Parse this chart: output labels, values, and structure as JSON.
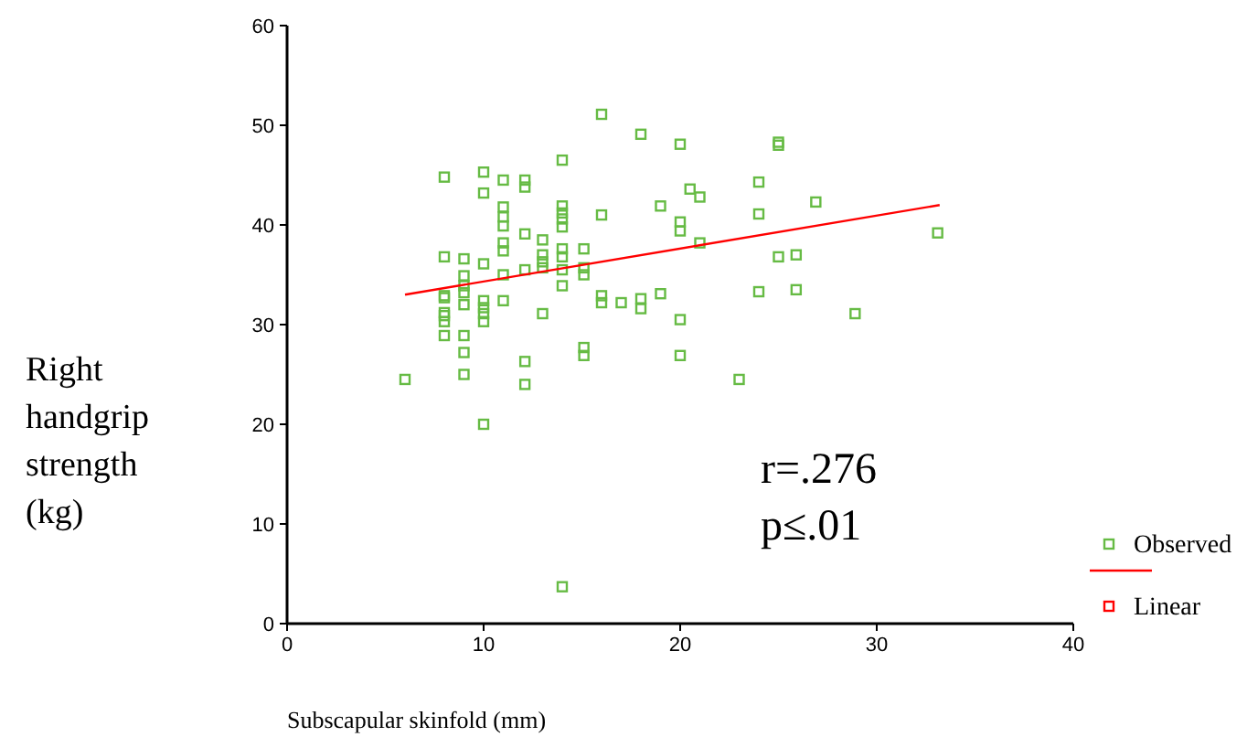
{
  "chart_data": {
    "type": "scatter",
    "xlabel": "Subscapular skinfold (mm)",
    "ylabel": "Right handgrip strength (kg)",
    "xlim": [
      0,
      40
    ],
    "xticks": [
      0,
      10,
      20,
      30,
      40
    ],
    "ylim": [
      0,
      60
    ],
    "yticks": [
      0,
      10,
      20,
      30,
      40,
      50,
      60
    ],
    "grid": false,
    "legend": "right",
    "annotations": [
      "r=.276",
      "p≤.01"
    ],
    "series": [
      {
        "name": "Observed",
        "marker": "square",
        "color": "#66bb44",
        "x": [
          8,
          10,
          10,
          11,
          12.1,
          12.1,
          11,
          11,
          11,
          11,
          11,
          12.1,
          13,
          13,
          13,
          8,
          9,
          10,
          9,
          9,
          9,
          9,
          8,
          8,
          8,
          8,
          8,
          10,
          10,
          10,
          10,
          11,
          11,
          12.1,
          13,
          8,
          9,
          9,
          12.1,
          6,
          9,
          12.1,
          10,
          16,
          18,
          20,
          25,
          25,
          14,
          20.5,
          21,
          24,
          26.9,
          24,
          19,
          16,
          14,
          14,
          14,
          14,
          20,
          20,
          21,
          14,
          14,
          15.1,
          13,
          14,
          15.1,
          15.1,
          14,
          16,
          16,
          17,
          18,
          18,
          19,
          20,
          25,
          25.9,
          24,
          25.9,
          28.9,
          15.1,
          15.1,
          20,
          23,
          14,
          33.1
        ],
        "values": [
          44.8,
          45.3,
          43.2,
          44.5,
          44.5,
          43.8,
          41.8,
          40.8,
          39.9,
          38.2,
          37.4,
          39.1,
          38.5,
          37,
          36.3,
          36.8,
          36.6,
          36.1,
          34.9,
          33.9,
          33.2,
          32,
          32.9,
          32.7,
          31.2,
          30.9,
          30.3,
          32.4,
          31.7,
          31.1,
          30.3,
          35,
          32.4,
          35.5,
          31.1,
          28.9,
          28.9,
          27.2,
          26.3,
          24.5,
          25,
          24,
          20,
          51.1,
          49.1,
          48.1,
          48.3,
          48,
          46.5,
          43.6,
          42.8,
          44.3,
          42.3,
          41.1,
          41.9,
          41,
          41.9,
          41.2,
          40.6,
          39.8,
          40.3,
          39.4,
          38.2,
          37.6,
          36.8,
          37.6,
          35.7,
          35.5,
          35.7,
          35,
          33.9,
          32.9,
          32.2,
          32.2,
          32.6,
          31.6,
          33.1,
          30.5,
          36.8,
          37,
          33.3,
          33.5,
          31.1,
          27.7,
          26.9,
          26.9,
          24.5,
          3.7,
          39.2
        ]
      },
      {
        "name": "Linear",
        "type": "line",
        "marker": "none",
        "color": "#ff0000",
        "x": [
          6,
          33.2
        ],
        "values": [
          33,
          42
        ]
      }
    ]
  }
}
